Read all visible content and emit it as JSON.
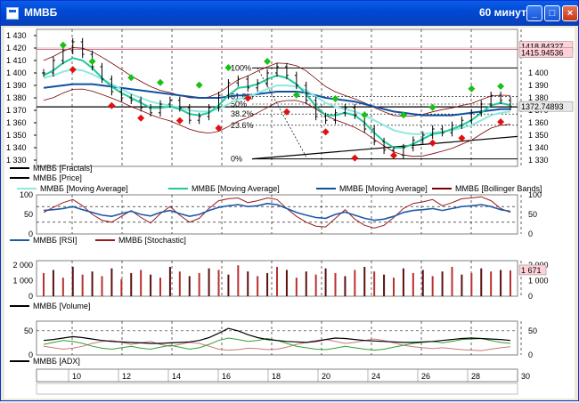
{
  "window": {
    "title": "ММВБ",
    "timeframe": "60 минут",
    "minimize_label": "_",
    "maximize_label": "□",
    "close_label": "×"
  },
  "price_pane": {
    "y_ticks": [
      "1 430",
      "1 420",
      "1 410",
      "1 400",
      "1 390",
      "1 380",
      "1 370",
      "1 360",
      "1 350",
      "1 340",
      "1 330"
    ],
    "right_ticks": [
      "1 400",
      "1 390",
      "1 380",
      "1 370",
      "1 360",
      "1 350",
      "1 340",
      "1 330"
    ],
    "price_tag_high": "1418.84327",
    "price_tag_mid": "1415.94536",
    "last_price_tag": "1372.74893",
    "fib_levels": [
      "100%",
      "61.8%",
      "50%",
      "38.2%",
      "23.6%",
      "0%"
    ],
    "legend": [
      {
        "label": "ММВБ [Fractals]",
        "color": "#000000"
      },
      {
        "label": "ММВБ [Price]",
        "color": "#000000"
      },
      {
        "label": "ММВБ [Moving Average]",
        "color": "#8fe8e0"
      },
      {
        "label": "ММВБ [Moving Average]",
        "color": "#22c99a"
      },
      {
        "label": "ММВБ [Moving Average]",
        "color": "#1050a0"
      },
      {
        "label": "ММВБ [Bollinger Bands]",
        "color": "#7a0000"
      }
    ]
  },
  "rsi_pane": {
    "y_ticks": [
      "100",
      "50",
      "0"
    ],
    "right_ticks": [
      "100",
      "50",
      "0"
    ],
    "legend": [
      {
        "label": "ММВБ [RSI]",
        "color": "#1e5aa8"
      },
      {
        "label": "ММВБ [Stochastic]",
        "color": "#9b1c1c"
      }
    ]
  },
  "volume_pane": {
    "y_ticks": [
      "2 000",
      "1 000",
      "0"
    ],
    "right_ticks": [
      "2 000",
      "1 000",
      "0"
    ],
    "last_tag": "1 671",
    "legend": [
      {
        "label": "ММВБ [Volume]",
        "color": "#000000"
      }
    ]
  },
  "adx_pane": {
    "y_ticks": [
      "50",
      "0"
    ],
    "right_ticks": [
      "50",
      "0"
    ],
    "legend": [
      {
        "label": "ММВБ [ADX]",
        "color": "#000000"
      }
    ]
  },
  "x_axis": {
    "labels": [
      "10",
      "12",
      "14",
      "16",
      "18",
      "20",
      "24",
      "26",
      "28",
      "30"
    ]
  },
  "chart_data": {
    "type": "line",
    "title": "ММВБ",
    "timeframe": "60 минут",
    "x_labels": [
      "10",
      "12",
      "14",
      "16",
      "18",
      "20",
      "24",
      "26",
      "28",
      "30"
    ],
    "price": {
      "ylim": [
        1325,
        1435
      ],
      "close": [
        1400,
        1410,
        1418,
        1425,
        1415,
        1405,
        1395,
        1385,
        1380,
        1378,
        1372,
        1368,
        1375,
        1378,
        1372,
        1362,
        1365,
        1372,
        1382,
        1392,
        1395,
        1388,
        1392,
        1400,
        1405,
        1398,
        1390,
        1378,
        1365,
        1362,
        1368,
        1372,
        1366,
        1355,
        1345,
        1338,
        1334,
        1340,
        1346,
        1350,
        1355,
        1352,
        1358,
        1362,
        1368,
        1375,
        1382,
        1378,
        1373
      ],
      "ma_fast": [
        1398,
        1402,
        1408,
        1412,
        1410,
        1404,
        1396,
        1389,
        1384,
        1380,
        1376,
        1372,
        1372,
        1373,
        1371,
        1367,
        1366,
        1368,
        1374,
        1382,
        1388,
        1389,
        1391,
        1395,
        1398,
        1396,
        1391,
        1383,
        1373,
        1366,
        1366,
        1368,
        1366,
        1360,
        1352,
        1345,
        1340,
        1340,
        1343,
        1347,
        1351,
        1352,
        1355,
        1358,
        1362,
        1368,
        1374,
        1376,
        1374
      ],
      "ma_mid": [
        1396,
        1398,
        1401,
        1403,
        1402,
        1399,
        1395,
        1391,
        1387,
        1383,
        1380,
        1377,
        1375,
        1374,
        1372,
        1370,
        1369,
        1369,
        1371,
        1375,
        1379,
        1381,
        1384,
        1387,
        1390,
        1390,
        1389,
        1386,
        1381,
        1376,
        1373,
        1371,
        1369,
        1366,
        1362,
        1358,
        1354,
        1352,
        1351,
        1351,
        1352,
        1353,
        1354,
        1356,
        1358,
        1362,
        1366,
        1368,
        1369
      ],
      "ma_slow": [
        1388,
        1389,
        1390,
        1391,
        1391,
        1391,
        1390,
        1389,
        1388,
        1387,
        1386,
        1385,
        1384,
        1383,
        1382,
        1381,
        1380,
        1380,
        1380,
        1381,
        1382,
        1382,
        1383,
        1384,
        1385,
        1385,
        1385,
        1384,
        1382,
        1380,
        1379,
        1378,
        1377,
        1375,
        1373,
        1371,
        1369,
        1368,
        1367,
        1366,
        1366,
        1366,
        1366,
        1367,
        1368,
        1369,
        1370,
        1371,
        1371
      ],
      "fractals_up": [
        1418,
        1405,
        1392,
        1388,
        1386,
        1400,
        1405,
        1378,
        1375,
        1362,
        1362,
        1368,
        1383,
        1385
      ],
      "fractals_down": [
        1407,
        1378,
        1368,
        1366,
        1360,
        1384,
        1373,
        1357,
        1336,
        1338,
        1348,
        1352,
        1365
      ],
      "fib_levels": {
        "100%": 1404,
        "61.8%": 1381,
        "50%": 1375,
        "38.2%": 1367,
        "23.6%": 1358,
        "0%": 1331
      },
      "last_price": 1372.74893,
      "price_tag_high": 1418.84327,
      "price_tag_mid": 1415.94536
    },
    "rsi": {
      "ylim": [
        0,
        100
      ],
      "rsi": [
        60,
        62,
        65,
        70,
        62,
        55,
        48,
        45,
        52,
        58,
        50,
        46,
        55,
        60,
        52,
        45,
        50,
        60,
        68,
        72,
        75,
        70,
        72,
        78,
        75,
        65,
        55,
        48,
        42,
        40,
        50,
        56,
        48,
        40,
        35,
        38,
        45,
        55,
        60,
        62,
        65,
        60,
        65,
        70,
        72,
        75,
        70,
        62,
        58
      ],
      "stochastic": [
        55,
        68,
        80,
        88,
        72,
        50,
        35,
        30,
        45,
        60,
        42,
        28,
        52,
        70,
        48,
        30,
        40,
        65,
        85,
        90,
        92,
        80,
        85,
        92,
        88,
        65,
        45,
        30,
        20,
        18,
        40,
        62,
        38,
        22,
        15,
        22,
        42,
        65,
        78,
        82,
        88,
        72,
        80,
        90,
        92,
        95,
        85,
        65,
        55
      ]
    },
    "volume": {
      "ylim": [
        0,
        2300
      ],
      "last": 1671,
      "values": [
        1500,
        1700,
        1200,
        1900,
        1400,
        1600,
        1300,
        1800,
        1100,
        1500,
        1700,
        1400,
        1200,
        1900,
        1600,
        1300,
        1500,
        1800,
        1700,
        1400,
        2000,
        1600,
        1300,
        1500,
        1900,
        1700,
        1200,
        1600,
        1400,
        1800,
        1500,
        1300,
        1700,
        1900,
        1600,
        1400,
        1200,
        1800,
        1500,
        1700,
        1300,
        1600,
        1900,
        1400,
        1500,
        1800,
        1600,
        1700,
        1671
      ]
    },
    "adx": {
      "ylim": [
        0,
        70
      ],
      "adx": [
        30,
        32,
        35,
        38,
        36,
        33,
        30,
        28,
        27,
        26,
        25,
        24,
        24,
        25,
        26,
        27,
        30,
        36,
        45,
        55,
        50,
        42,
        36,
        32,
        30,
        28,
        27,
        26,
        28,
        32,
        35,
        34,
        32,
        30,
        29,
        28,
        27,
        26,
        26,
        27,
        28,
        30,
        32,
        34,
        35,
        34,
        33,
        32,
        30
      ],
      "plus_di": [
        22,
        26,
        30,
        28,
        24,
        18,
        14,
        12,
        15,
        18,
        14,
        12,
        16,
        20,
        16,
        12,
        15,
        22,
        30,
        35,
        32,
        28,
        30,
        34,
        30,
        24,
        18,
        15,
        12,
        11,
        14,
        18,
        15,
        12,
        10,
        12,
        16,
        20,
        24,
        26,
        28,
        25,
        28,
        32,
        33,
        34,
        30,
        26,
        24
      ],
      "minus_di": [
        18,
        15,
        12,
        14,
        18,
        24,
        28,
        30,
        26,
        22,
        25,
        28,
        22,
        18,
        22,
        26,
        24,
        18,
        12,
        10,
        11,
        14,
        13,
        11,
        12,
        16,
        22,
        26,
        30,
        32,
        28,
        24,
        26,
        30,
        33,
        30,
        25,
        20,
        17,
        15,
        13,
        15,
        13,
        11,
        10,
        9,
        12,
        15,
        17
      ]
    }
  }
}
